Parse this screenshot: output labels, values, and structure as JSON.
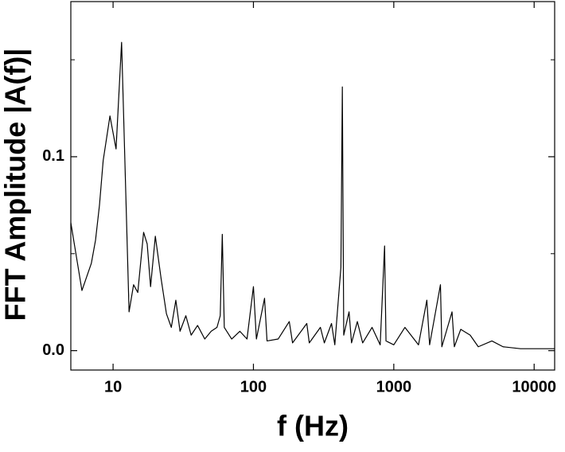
{
  "chart_data": {
    "type": "line",
    "xlabel": "f (Hz)",
    "ylabel": "FFT Amplitude |A(f)|",
    "xscale": "log",
    "xlim": [
      5,
      14000
    ],
    "xticks": [
      10,
      100,
      1000,
      10000
    ],
    "ylim": [
      -0.01,
      0.18
    ],
    "yticks": [
      {
        "value": 0,
        "label": "0.0"
      },
      0.1
    ],
    "yminorticks": [
      0.05,
      0.15
    ],
    "series": [
      {
        "color": "#000000",
        "x": [
          5,
          6,
          7,
          7.5,
          8,
          8.5,
          9.5,
          10.5,
          11.5,
          13,
          14,
          15,
          16.5,
          17.5,
          18.5,
          20,
          22,
          24,
          26,
          28,
          30,
          33,
          36,
          40,
          45,
          50,
          55,
          58,
          60,
          62,
          70,
          80,
          90,
          100,
          105,
          120,
          125,
          150,
          180,
          190,
          240,
          250,
          300,
          320,
          360,
          380,
          420,
          430,
          440,
          480,
          500,
          550,
          600,
          700,
          800,
          860,
          880,
          1000,
          1200,
          1500,
          1720,
          1800,
          2150,
          2200,
          2600,
          2700,
          3000,
          3500,
          4000,
          5000,
          6000,
          8000,
          14000
        ],
        "values": [
          0.066,
          0.031,
          0.045,
          0.057,
          0.075,
          0.098,
          0.121,
          0.104,
          0.159,
          0.02,
          0.034,
          0.03,
          0.061,
          0.055,
          0.033,
          0.059,
          0.037,
          0.019,
          0.012,
          0.026,
          0.01,
          0.018,
          0.008,
          0.013,
          0.006,
          0.01,
          0.012,
          0.018,
          0.06,
          0.012,
          0.006,
          0.01,
          0.006,
          0.033,
          0.006,
          0.027,
          0.005,
          0.006,
          0.015,
          0.004,
          0.014,
          0.004,
          0.012,
          0.004,
          0.014,
          0.003,
          0.043,
          0.136,
          0.008,
          0.02,
          0.004,
          0.015,
          0.004,
          0.012,
          0.003,
          0.054,
          0.005,
          0.003,
          0.012,
          0.003,
          0.026,
          0.003,
          0.034,
          0.002,
          0.02,
          0.002,
          0.011,
          0.008,
          0.002,
          0.005,
          0.002,
          0.001,
          0.001
        ]
      }
    ]
  }
}
